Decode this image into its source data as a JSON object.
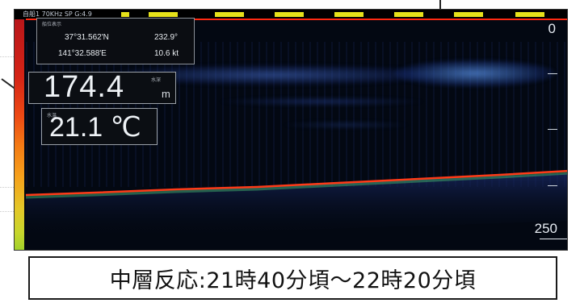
{
  "screen": {
    "status_text": "自船1  70KHz SP  G:4.9",
    "range_top": "0",
    "range_bottom": "250"
  },
  "navigation": {
    "header": "船位表示",
    "latitude": "37°31.562'N",
    "longitude": "141°32.588'E",
    "heading": "232.9°",
    "speed": "10.6 kt"
  },
  "depth": {
    "icon_label": "水深",
    "value": "174.4",
    "unit": "m"
  },
  "temperature": {
    "label": "水温",
    "value": "21.1 ℃"
  },
  "caption": {
    "text": "中層反応:21時40分頃〜22時20分頃"
  },
  "colors": {
    "seabed_line": "#ff3a18",
    "surface_line": "#ff2a12",
    "echo_blue": "#3f6fe0",
    "status_marker": "#e6e21a"
  }
}
